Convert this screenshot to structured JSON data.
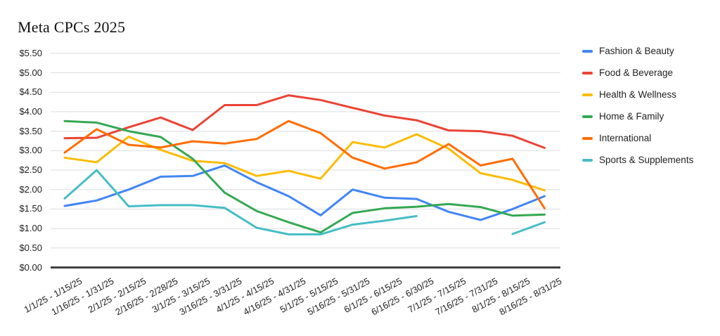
{
  "chart_data": {
    "type": "line",
    "title": "Meta CPCs 2025",
    "xlabel": "",
    "ylabel": "",
    "ylim": [
      0,
      5.5
    ],
    "grid": true,
    "legend_position": "right",
    "y_ticks": [
      {
        "label": "$5.50",
        "value": 5.5
      },
      {
        "label": "$5.00",
        "value": 5.0
      },
      {
        "label": "$4.50",
        "value": 4.5
      },
      {
        "label": "$4.00",
        "value": 4.0
      },
      {
        "label": "$3.50",
        "value": 3.5
      },
      {
        "label": "$3.00",
        "value": 3.0
      },
      {
        "label": "$2.50",
        "value": 2.5
      },
      {
        "label": "$2.00",
        "value": 2.0
      },
      {
        "label": "$1.50",
        "value": 1.5
      },
      {
        "label": "$1.00",
        "value": 1.0
      },
      {
        "label": "$0.50",
        "value": 0.5
      },
      {
        "label": "$0.00",
        "value": 0.0
      }
    ],
    "categories": [
      "1/1/25 - 1/15/25",
      "1/16/25 - 1/31/25",
      "2/1/25 - 2/15/25",
      "2/16/25 - 2/28/25",
      "3/1/25 - 3/15/25",
      "3/16/25 - 3/31/25",
      "4/1/25 - 4/15/25",
      "4/16/25 - 4/31/25",
      "5/1/25 - 5/15/25",
      "5/16/25 - 5/31/25",
      "6/1/25 - 6/15/25",
      "6/16/25 - 6/30/25",
      "7/1/25 - 7/15/25",
      "7/16/25 - 7/31/25",
      "8/1/25 - 8/15/25",
      "8/16/25 - 8/31/25"
    ],
    "series": [
      {
        "name": "Fashion & Beauty",
        "color": "#4285F4",
        "values": [
          1.58,
          1.72,
          2.0,
          2.33,
          2.35,
          2.62,
          2.19,
          1.83,
          1.34,
          2.0,
          1.79,
          1.76,
          1.43,
          1.22,
          1.5,
          1.83
        ]
      },
      {
        "name": "Food & Beverage",
        "color": "#EA4335",
        "values": [
          3.32,
          3.33,
          3.6,
          3.85,
          3.53,
          4.17,
          4.17,
          4.42,
          4.3,
          4.1,
          3.9,
          3.78,
          3.52,
          3.5,
          3.38,
          3.07
        ]
      },
      {
        "name": "Health & Wellness",
        "color": "#FBBC04",
        "values": [
          2.82,
          2.7,
          3.36,
          3.02,
          2.74,
          2.68,
          2.35,
          2.48,
          2.28,
          3.22,
          3.08,
          3.42,
          3.05,
          2.42,
          2.25,
          1.98
        ]
      },
      {
        "name": "Home & Family",
        "color": "#34A853",
        "values": [
          3.76,
          3.72,
          3.5,
          3.35,
          2.79,
          1.92,
          1.45,
          1.16,
          0.9,
          1.4,
          1.52,
          1.56,
          1.63,
          1.55,
          1.33,
          1.36
        ]
      },
      {
        "name": "International",
        "color": "#FF6D01",
        "values": [
          2.95,
          3.55,
          3.15,
          3.08,
          3.24,
          3.18,
          3.3,
          3.76,
          3.45,
          2.82,
          2.54,
          2.7,
          3.17,
          2.62,
          2.79,
          1.52
        ]
      },
      {
        "name": "Sports & Supplements",
        "color": "#46BDC6",
        "values": [
          1.77,
          2.5,
          1.57,
          1.6,
          1.6,
          1.53,
          1.02,
          0.85,
          0.85,
          1.1,
          1.2,
          1.32,
          null,
          null,
          0.86,
          1.16
        ]
      }
    ]
  }
}
